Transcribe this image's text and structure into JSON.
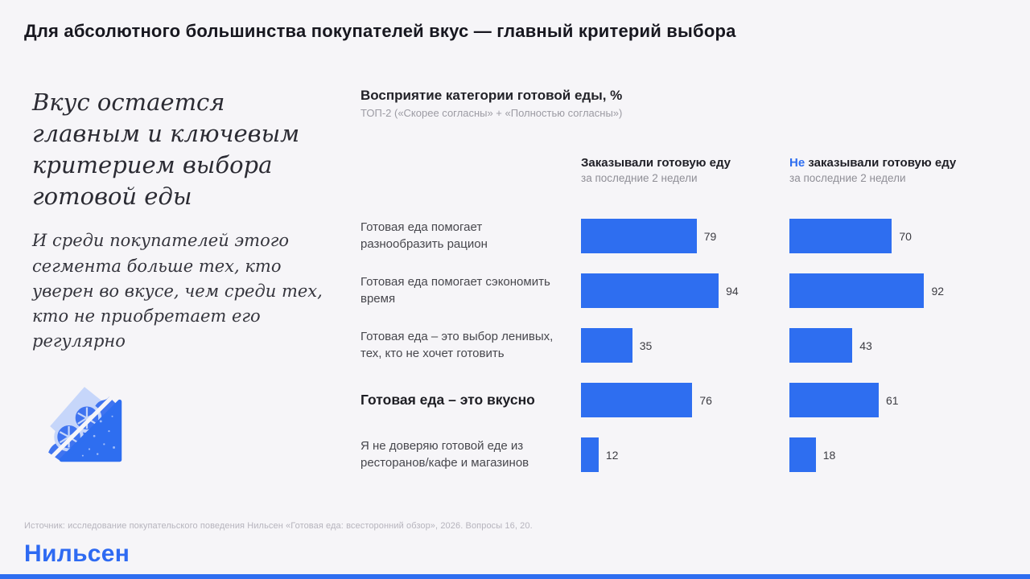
{
  "page": {
    "background_color": "#f6f5f8",
    "accent_color": "#2e6ef0",
    "title": "Для абсолютного большинства покупателей вкус — главный критерий выбора"
  },
  "sidebar": {
    "heading": "Вкус остается главным и ключевым критерием выбора готовой еды",
    "paragraph": "И среди покупателей этого сегмента больше тех, кто уверен во вкусе, чем среди тех, кто не приобретает его регулярно",
    "illustration": "sandwich-illustration"
  },
  "chart": {
    "title": "Восприятие категории готовой еды, %",
    "subtitle": "ТОП-2 («Скорее согласны» + «Полностью согласны»)",
    "columns": [
      {
        "title_prefix": "",
        "title_rest": "Заказывали готовую еду",
        "subtitle": "за последние 2 недели"
      },
      {
        "title_prefix": "Не",
        "title_rest": " заказывали готовую еду",
        "subtitle": "за последние 2 недели"
      }
    ]
  },
  "chart_data": {
    "type": "bar",
    "orientation": "horizontal",
    "title": "Восприятие категории готовой еды, %",
    "subtitle": "ТОП-2 («Скорее согласны» + «Полностью согласны»)",
    "categories": [
      "Готовая еда помогает разнообразить рацион",
      "Готовая еда помогает сэкономить время",
      "Готовая еда – это выбор ленивых, тех, кто не хочет готовить",
      "Готовая еда – это вкусно",
      "Я не доверяю готовой еде из ресторанов/кафе и магазинов"
    ],
    "series": [
      {
        "name": "Заказывали готовую еду за последние 2 недели",
        "values": [
          79,
          94,
          35,
          76,
          12
        ]
      },
      {
        "name": "Не заказывали готовую еду за последние 2 недели",
        "values": [
          70,
          92,
          43,
          61,
          18
        ]
      }
    ],
    "xlim": [
      0,
      100
    ],
    "bar_color": "#2e6ef0",
    "value_labels": true,
    "emphasized_category_index": 3,
    "legend_position": "column-headers",
    "grid": false
  },
  "footer": {
    "source": "Источник: исследование покупательского поведения Нильсен «Готовая еда: всесторонний обзор», 2026. Вопросы 16, 20.",
    "logo": "Нильсен"
  }
}
